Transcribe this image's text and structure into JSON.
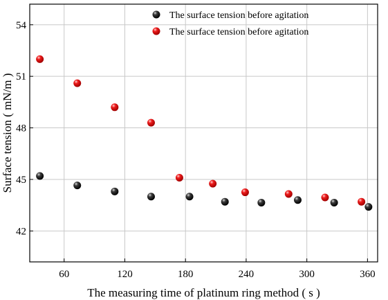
{
  "chart_data": {
    "type": "scatter",
    "xlabel": "The measuring time of platinum ring method ( s )",
    "ylabel": "Surface tension ( mN/m )",
    "xlim": [
      26,
      370
    ],
    "ylim": [
      40.2,
      55.2
    ],
    "x_ticks": [
      60,
      120,
      180,
      240,
      300,
      360
    ],
    "y_ticks": [
      42,
      45,
      48,
      51,
      54
    ],
    "grid": true,
    "legend_position": "top-right",
    "series": [
      {
        "name": "The surface tension before agitation",
        "color": "#000000",
        "x": [
          36,
          73,
          110,
          146,
          184,
          219,
          255,
          291,
          327,
          361
        ],
        "y": [
          45.2,
          44.65,
          44.3,
          44.0,
          44.0,
          43.7,
          43.65,
          43.8,
          43.65,
          43.4
        ]
      },
      {
        "name": "The surface tension before agitation",
        "color": "#e00000",
        "x": [
          36,
          73,
          110,
          146,
          174,
          207,
          239,
          282,
          318,
          354
        ],
        "y": [
          52.0,
          50.6,
          49.2,
          48.3,
          45.1,
          44.75,
          44.25,
          44.15,
          43.95,
          43.7
        ]
      }
    ]
  }
}
